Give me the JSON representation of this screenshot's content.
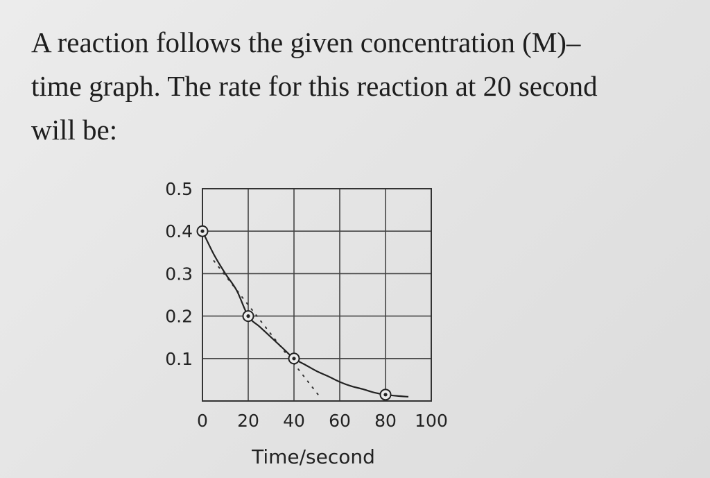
{
  "question": {
    "lines": [
      "A reaction follows the given concentration (M)–",
      "time graph. The rate for this reaction at 20 second",
      "will be:"
    ]
  },
  "chart_data": {
    "type": "line",
    "xlabel": "Time/second",
    "ylabel": "",
    "xlim": [
      0,
      100
    ],
    "ylim": [
      0,
      0.5
    ],
    "x_ticks": [
      "0",
      "20",
      "40",
      "60",
      "80",
      "100"
    ],
    "y_ticks": [
      "0.1",
      "0.2",
      "0.3",
      "0.4",
      "0.5"
    ],
    "grid": true,
    "series": [
      {
        "curve": {
          "x": [
            0,
            5,
            10,
            15,
            20,
            25,
            30,
            35,
            40,
            45,
            50,
            55,
            60,
            65,
            70,
            75,
            80,
            85,
            90
          ],
          "y": [
            0.4,
            0.345,
            0.3,
            0.26,
            0.2,
            0.175,
            0.15,
            0.125,
            0.1,
            0.085,
            0.07,
            0.058,
            0.045,
            0.035,
            0.028,
            0.02,
            0.015,
            0.012,
            0.01
          ]
        },
        "markers": {
          "x": [
            0,
            20,
            40,
            80
          ],
          "y": [
            0.4,
            0.2,
            0.1,
            0.015
          ]
        }
      }
    ],
    "tangent": {
      "x": [
        5,
        52
      ],
      "y": [
        0.33,
        0.005
      ]
    }
  }
}
